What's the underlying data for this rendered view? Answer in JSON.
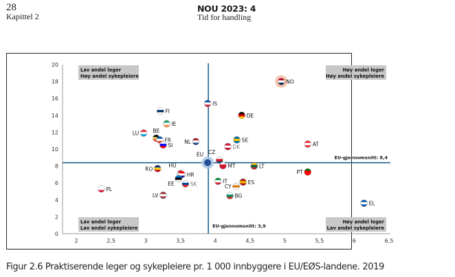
{
  "header": {
    "page_number": "28",
    "chapter": "Kapittel 2",
    "document_title": "NOU 2023: 4",
    "document_subtitle": "Tid for handling"
  },
  "caption": "Figur 2.6  Praktiserende leger og sykepleiere pr. 1 000 innbyggere i EU/EØS-landene. 2019",
  "chart_data": {
    "type": "scatter",
    "title": "Praktiserende leger og sykepleiere pr. 1 000 innbyggere i EU/EØS-landene. 2019",
    "xlabel": "",
    "ylabel": "",
    "xlim": [
      2,
      6.5
    ],
    "ylim": [
      0,
      20
    ],
    "x_ticks": [
      "2",
      "2,5",
      "3",
      "3,5",
      "4",
      "4,5",
      "5",
      "5,5",
      "6",
      "6,5"
    ],
    "y_ticks": [
      "0",
      "2",
      "4",
      "6",
      "8",
      "10",
      "12",
      "14",
      "16",
      "18",
      "20"
    ],
    "grid": false,
    "reference_lines": {
      "vertical": {
        "value": 3.9,
        "label": "EU-gjennomsnitt: 3,9"
      },
      "horizontal": {
        "value": 8.4,
        "label": "EU-gjennomsnitt: 8,4"
      }
    },
    "line_color": "#1f5f8b",
    "quadrant_labels": {
      "top_left": [
        "Lav andel leger",
        "Høy andel sykepleiere"
      ],
      "top_right": [
        "Høy andel leger",
        "Høy andel sykepleiere"
      ],
      "bottom_left": [
        "Lav andel leger",
        "Lav andel sykepleiere"
      ],
      "bottom_right": [
        "Høy andel leger",
        "Lav andel sykepleiere"
      ]
    },
    "points": [
      {
        "label": "NO",
        "x": 4.95,
        "y": 18.0,
        "highlight": "#f4b89a",
        "flag": [
          "#ba0c2f",
          "#ffffff",
          "#00205b"
        ]
      },
      {
        "label": "IS",
        "x": 3.89,
        "y": 15.4,
        "flag": [
          "#02529c",
          "#ffffff",
          "#dc1e35"
        ]
      },
      {
        "label": "FI",
        "x": 3.21,
        "y": 14.5,
        "flag": [
          "#ffffff",
          "#002f6c",
          "#ffffff"
        ]
      },
      {
        "label": "DE",
        "x": 4.38,
        "y": 14.0,
        "flag": [
          "#000000",
          "#dd0000",
          "#ffce00"
        ]
      },
      {
        "label": "IE",
        "x": 3.3,
        "y": 13.0,
        "flag": [
          "#169b62",
          "#ffffff",
          "#ff883e"
        ]
      },
      {
        "label": "LU",
        "x": 2.97,
        "y": 11.9,
        "flag": [
          "#ed2939",
          "#ffffff",
          "#00a1de"
        ]
      },
      {
        "label": "BE",
        "x": 3.15,
        "y": 11.3,
        "flag": [
          "#000000",
          "#fae042",
          "#ed2939"
        ]
      },
      {
        "label": "FR",
        "x": 3.2,
        "y": 11.1,
        "flag": [
          "#0055a4",
          "#ffffff",
          "#ef4135"
        ]
      },
      {
        "label": "SE",
        "x": 4.31,
        "y": 11.1,
        "flag": [
          "#006aa7",
          "#fecc00",
          "#006aa7"
        ]
      },
      {
        "label": "NL",
        "x": 3.72,
        "y": 10.9,
        "flag": [
          "#ae1c28",
          "#ffffff",
          "#21468b"
        ]
      },
      {
        "label": "AT",
        "x": 5.33,
        "y": 10.6,
        "flag": [
          "#ed2939",
          "#ffffff",
          "#ed2939"
        ]
      },
      {
        "label": "SI",
        "x": 3.25,
        "y": 10.5,
        "flag": [
          "#ffffff",
          "#0000ff",
          "#ff0000"
        ]
      },
      {
        "label": "DK",
        "x": 4.18,
        "y": 10.3,
        "flag": [
          "#c8102e",
          "#ffffff",
          "#c8102e"
        ]
      },
      {
        "label": "CZ",
        "x": 4.06,
        "y": 8.7,
        "flag": [
          "#ffffff",
          "#d7141a",
          "#11457e"
        ]
      },
      {
        "label": "EU",
        "x": 3.89,
        "y": 8.4,
        "highlight": "#a9c8e8",
        "flag": [
          "#1f4e9b",
          "#1f4e9b",
          "#1f4e9b"
        ]
      },
      {
        "label": "MT",
        "x": 4.11,
        "y": 8.05,
        "flag": [
          "#ffffff",
          "#cf142b",
          "#cf142b"
        ]
      },
      {
        "label": "LT",
        "x": 4.56,
        "y": 8.0,
        "flag": [
          "#fdb913",
          "#006a44",
          "#c1272d"
        ]
      },
      {
        "label": "RO",
        "x": 3.17,
        "y": 7.7,
        "flag": [
          "#002b7f",
          "#fcd116",
          "#ce1126"
        ]
      },
      {
        "label": "PT",
        "x": 5.33,
        "y": 7.3,
        "flag": [
          "#006600",
          "#ff0000",
          "#ff0000"
        ]
      },
      {
        "label": "HU",
        "x": 3.5,
        "y": 7.1,
        "flag": [
          "#ce2939",
          "#ffffff",
          "#477050"
        ]
      },
      {
        "label": "HR",
        "x": 3.52,
        "y": 7.0,
        "flag": [
          "#ff0000",
          "#ffffff",
          "#171796"
        ]
      },
      {
        "label": "EE",
        "x": 3.47,
        "y": 6.5,
        "flag": [
          "#0072ce",
          "#000000",
          "#ffffff"
        ]
      },
      {
        "label": "IT",
        "x": 4.04,
        "y": 6.2,
        "flag": [
          "#009246",
          "#ffffff",
          "#ce2b37"
        ]
      },
      {
        "label": "ES",
        "x": 4.4,
        "y": 6.1,
        "flag": [
          "#aa151b",
          "#f1bf00",
          "#aa151b"
        ]
      },
      {
        "label": "SK",
        "x": 3.57,
        "y": 5.9,
        "flag": [
          "#ffffff",
          "#0b4ea2",
          "#ee1c25"
        ]
      },
      {
        "label": "CY",
        "x": 4.3,
        "y": 5.6,
        "flag": [
          "#ffffff",
          "#d57800",
          "#ffffff"
        ]
      },
      {
        "label": "PL",
        "x": 2.36,
        "y": 5.3,
        "flag": [
          "#ffffff",
          "#ffffff",
          "#dc143c"
        ]
      },
      {
        "label": "LV",
        "x": 3.25,
        "y": 4.55,
        "flag": [
          "#9e3039",
          "#ffffff",
          "#9e3039"
        ]
      },
      {
        "label": "BG",
        "x": 4.21,
        "y": 4.5,
        "flag": [
          "#ffffff",
          "#00966e",
          "#d62612"
        ]
      },
      {
        "label": "EL",
        "x": 6.14,
        "y": 3.6,
        "flag": [
          "#0d5eaf",
          "#ffffff",
          "#0d5eaf"
        ]
      }
    ]
  }
}
